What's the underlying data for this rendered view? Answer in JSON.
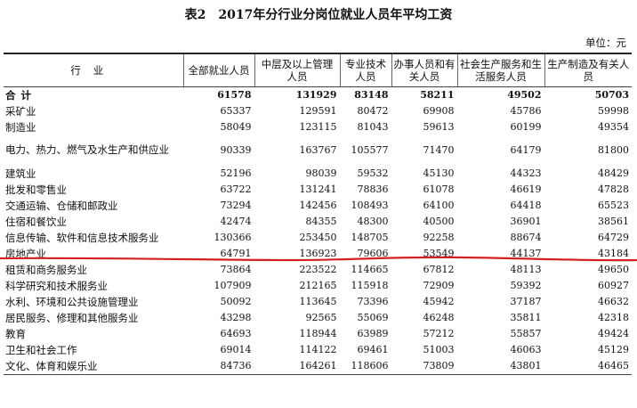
{
  "title": "表2　2017年分行业分岗位就业人员年平均工资",
  "unit": "单位：元",
  "columns": [
    "行业",
    "全部就业人员",
    "中层及以上管理人员",
    "专业技术人员",
    "办事人员和有关人员",
    "社会生产服务和生活服务人员",
    "生产制造及有关人员"
  ],
  "rows": [
    {
      "name": "合计",
      "values": [
        "61578",
        "131929",
        "83148",
        "58211",
        "49502",
        "50703"
      ]
    },
    {
      "name": "采矿业",
      "values": [
        "65337",
        "129591",
        "80472",
        "69908",
        "45786",
        "59998"
      ]
    },
    {
      "name": "制造业",
      "values": [
        "58049",
        "123115",
        "81043",
        "59613",
        "60199",
        "49354"
      ]
    },
    {
      "name": "电力、热力、燃气及水生产和供应业",
      "values": [
        "90339",
        "163767",
        "105577",
        "71470",
        "64179",
        "81800"
      ]
    },
    {
      "name": "建筑业",
      "values": [
        "52196",
        "98039",
        "59532",
        "45130",
        "44323",
        "48429"
      ]
    },
    {
      "name": "批发和零售业",
      "values": [
        "63722",
        "131241",
        "78836",
        "61078",
        "46619",
        "47828"
      ]
    },
    {
      "name": "交通运输、仓储和邮政业",
      "values": [
        "73294",
        "142456",
        "108493",
        "64100",
        "64418",
        "65523"
      ]
    },
    {
      "name": "住宿和餐饮业",
      "values": [
        "42474",
        "84355",
        "48300",
        "40500",
        "36901",
        "38561"
      ]
    },
    {
      "name": "信息传输、软件和信息技术服务业",
      "values": [
        "130366",
        "253450",
        "148705",
        "92258",
        "88674",
        "64729"
      ]
    },
    {
      "name": "房地产业",
      "values": [
        "64791",
        "136923",
        "79606",
        "53549",
        "44137",
        "43184"
      ]
    },
    {
      "name": "租赁和商务服务业",
      "values": [
        "73864",
        "223522",
        "114665",
        "67812",
        "48113",
        "49650"
      ]
    },
    {
      "name": "科学研究和技术服务业",
      "values": [
        "107909",
        "212165",
        "115918",
        "72909",
        "59392",
        "60927"
      ]
    },
    {
      "name": "水利、环境和公共设施管理业",
      "values": [
        "50092",
        "113645",
        "73396",
        "45942",
        "37187",
        "46632"
      ]
    },
    {
      "name": "居民服务、修理和其他服务业",
      "values": [
        "43298",
        "92565",
        "55069",
        "46248",
        "35811",
        "42318"
      ]
    },
    {
      "name": "教育",
      "values": [
        "64693",
        "118944",
        "63989",
        "57212",
        "55857",
        "49424"
      ]
    },
    {
      "name": "卫生和社会工作",
      "values": [
        "69014",
        "114122",
        "69461",
        "51003",
        "46063",
        "45129"
      ]
    },
    {
      "name": "文化、体育和娱乐业",
      "values": [
        "84736",
        "164261",
        "118606",
        "73809",
        "43801",
        "46465"
      ]
    }
  ],
  "colors": {
    "annotation_line": "#d42020",
    "rule": "#222222"
  }
}
